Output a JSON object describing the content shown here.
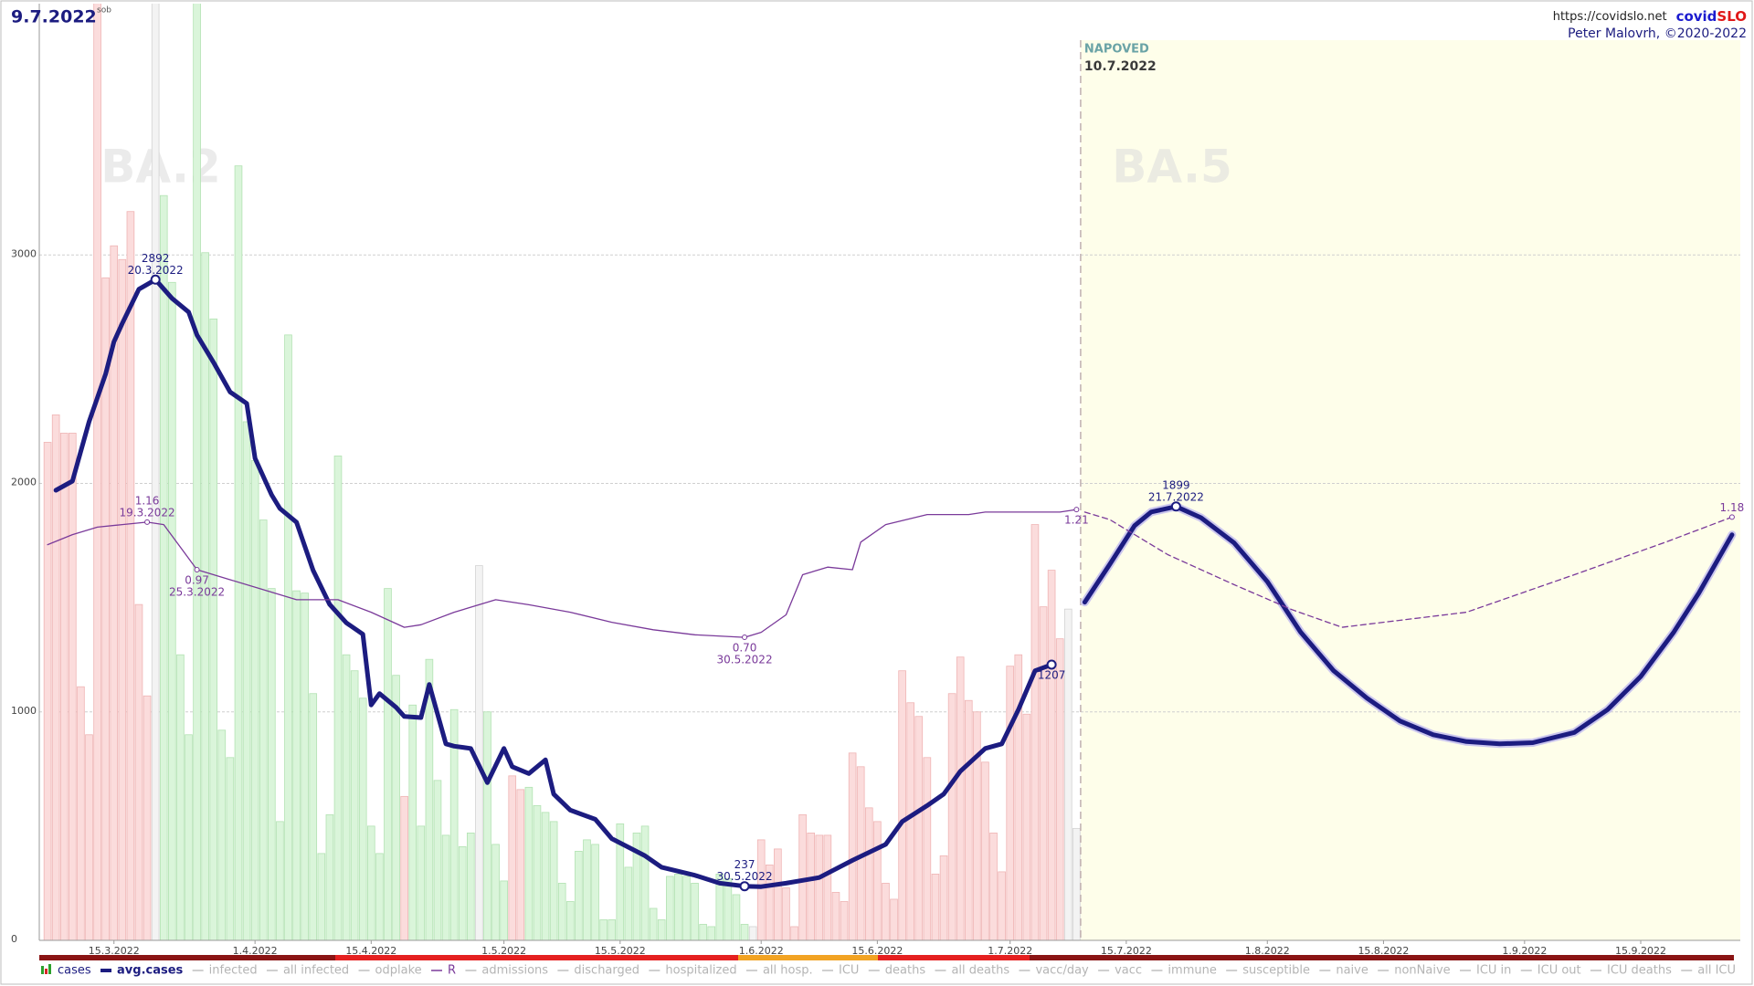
{
  "chart_data": {
    "type": "combo",
    "title": "9.7.2022",
    "subtitle": "sob",
    "source": "https://covidslo.net",
    "brand": [
      "covid",
      "SLO"
    ],
    "author": "Peter Malovrh, ©2020-2022",
    "forecast_label": "NAPOVED",
    "forecast_start": "10.7.2022",
    "variants": [
      "BA.2",
      "BA.5"
    ],
    "xlim": [
      "6.3.2022",
      "27.9.2022"
    ],
    "xticks": [
      "15.3.2022",
      "1.4.2022",
      "15.4.2022",
      "1.5.2022",
      "15.5.2022",
      "1.6.2022",
      "15.6.2022",
      "1.7.2022",
      "15.7.2022",
      "1.8.2022",
      "15.8.2022",
      "1.9.2022",
      "15.9.2022"
    ],
    "ylim": [
      0,
      4100
    ],
    "yticks": [
      0,
      1000,
      2000,
      3000
    ],
    "y2lim": [
      -0.51,
      3.23
    ],
    "grid": true,
    "series": [
      {
        "name": "cases",
        "type": "bar",
        "colors": {
          "up": "#fbdcdc",
          "down": "#daf5da",
          "flat": "#f3f3f3"
        },
        "edge_colors": {
          "up": "#efb4b4",
          "down": "#b2e2b2",
          "flat": "#d2d2d2"
        },
        "x": [
          "7.3.2022",
          "8.3.2022",
          "9.3.2022",
          "10.3.2022",
          "11.3.2022",
          "12.3.2022",
          "13.3.2022",
          "14.3.2022",
          "15.3.2022",
          "16.3.2022",
          "17.3.2022",
          "18.3.2022",
          "19.3.2022",
          "20.3.2022",
          "21.3.2022",
          "22.3.2022",
          "23.3.2022",
          "24.3.2022",
          "25.3.2022",
          "26.3.2022",
          "27.3.2022",
          "28.3.2022",
          "29.3.2022",
          "30.3.2022",
          "31.3.2022",
          "1.4.2022",
          "2.4.2022",
          "3.4.2022",
          "4.4.2022",
          "5.4.2022",
          "6.4.2022",
          "7.4.2022",
          "8.4.2022",
          "9.4.2022",
          "10.4.2022",
          "11.4.2022",
          "12.4.2022",
          "13.4.2022",
          "14.4.2022",
          "15.4.2022",
          "16.4.2022",
          "17.4.2022",
          "18.4.2022",
          "19.4.2022",
          "20.4.2022",
          "21.4.2022",
          "22.4.2022",
          "23.4.2022",
          "24.4.2022",
          "25.4.2022",
          "26.4.2022",
          "27.4.2022",
          "28.4.2022",
          "29.4.2022",
          "30.4.2022",
          "1.5.2022",
          "2.5.2022",
          "3.5.2022",
          "4.5.2022",
          "5.5.2022",
          "6.5.2022",
          "7.5.2022",
          "8.5.2022",
          "9.5.2022",
          "10.5.2022",
          "11.5.2022",
          "12.5.2022",
          "13.5.2022",
          "14.5.2022",
          "15.5.2022",
          "16.5.2022",
          "17.5.2022",
          "18.5.2022",
          "19.5.2022",
          "20.5.2022",
          "21.5.2022",
          "22.5.2022",
          "23.5.2022",
          "24.5.2022",
          "25.5.2022",
          "26.5.2022",
          "27.5.2022",
          "28.5.2022",
          "29.5.2022",
          "30.5.2022",
          "31.5.2022",
          "1.6.2022",
          "2.6.2022",
          "3.6.2022",
          "4.6.2022",
          "5.6.2022",
          "6.6.2022",
          "7.6.2022",
          "8.6.2022",
          "9.6.2022",
          "10.6.2022",
          "11.6.2022",
          "12.6.2022",
          "13.6.2022",
          "14.6.2022",
          "15.6.2022",
          "16.6.2022",
          "17.6.2022",
          "18.6.2022",
          "19.6.2022",
          "20.6.2022",
          "21.6.2022",
          "22.6.2022",
          "23.6.2022",
          "24.6.2022",
          "25.6.2022",
          "26.6.2022",
          "27.6.2022",
          "28.6.2022",
          "29.6.2022",
          "30.6.2022",
          "1.7.2022",
          "2.7.2022",
          "3.7.2022",
          "4.7.2022",
          "5.7.2022",
          "6.7.2022",
          "7.7.2022",
          "8.7.2022",
          "9.7.2022"
        ],
        "values": [
          2180,
          2300,
          2220,
          2220,
          1110,
          900,
          4300,
          2900,
          3040,
          2980,
          3190,
          1470,
          1070,
          4300,
          3260,
          2880,
          1250,
          900,
          4300,
          3010,
          2720,
          920,
          800,
          3390,
          2270,
          2100,
          1840,
          1540,
          520,
          2650,
          1530,
          1520,
          1080,
          380,
          550,
          2120,
          1250,
          1180,
          1060,
          500,
          380,
          1540,
          1160,
          630,
          1030,
          500,
          1230,
          700,
          460,
          1010,
          410,
          470,
          1640,
          1000,
          420,
          260,
          720,
          660,
          670,
          590,
          560,
          520,
          250,
          170,
          390,
          440,
          420,
          90,
          90,
          510,
          320,
          470,
          500,
          140,
          90,
          280,
          290,
          280,
          250,
          70,
          60,
          290,
          270,
          200,
          70,
          60,
          440,
          330,
          400,
          230,
          60,
          550,
          470,
          460,
          460,
          210,
          170,
          820,
          760,
          580,
          520,
          250,
          180,
          1180,
          1040,
          980,
          800,
          290,
          370,
          1080,
          1240,
          1050,
          1000,
          780,
          470,
          300,
          1200,
          1250,
          990,
          1820,
          1460,
          1620,
          1320,
          1450,
          490
        ]
      },
      {
        "name": "avg.cases",
        "type": "line",
        "color": "#1c1c80",
        "width": 5,
        "x": [
          "8.3.2022",
          "10.3.2022",
          "12.3.2022",
          "14.3.2022",
          "15.3.2022",
          "16.3.2022",
          "18.3.2022",
          "20.3.2022",
          "22.3.2022",
          "24.3.2022",
          "25.3.2022",
          "27.3.2022",
          "29.3.2022",
          "31.3.2022",
          "1.4.2022",
          "3.4.2022",
          "4.4.2022",
          "6.4.2022",
          "8.4.2022",
          "10.4.2022",
          "12.4.2022",
          "14.4.2022",
          "15.4.2022",
          "16.4.2022",
          "18.4.2022",
          "19.4.2022",
          "21.4.2022",
          "22.4.2022",
          "24.4.2022",
          "25.4.2022",
          "27.4.2022",
          "29.4.2022",
          "1.5.2022",
          "2.5.2022",
          "4.5.2022",
          "6.5.2022",
          "7.5.2022",
          "9.5.2022",
          "12.5.2022",
          "14.5.2022",
          "18.5.2022",
          "20.5.2022",
          "24.5.2022",
          "27.5.2022",
          "30.5.2022",
          "1.6.2022",
          "4.6.2022",
          "8.6.2022",
          "12.6.2022",
          "16.6.2022",
          "18.6.2022",
          "21.6.2022",
          "23.6.2022",
          "25.6.2022",
          "28.6.2022",
          "30.6.2022",
          "2.7.2022",
          "4.7.2022",
          "6.7.2022"
        ],
        "values": [
          1970,
          2010,
          2270,
          2480,
          2620,
          2700,
          2850,
          2892,
          2810,
          2750,
          2650,
          2530,
          2400,
          2350,
          2110,
          1950,
          1890,
          1830,
          1620,
          1470,
          1390,
          1340,
          1030,
          1080,
          1020,
          980,
          975,
          1120,
          860,
          850,
          840,
          690,
          840,
          760,
          730,
          790,
          640,
          570,
          530,
          445,
          370,
          320,
          285,
          250,
          237,
          235,
          250,
          275,
          350,
          420,
          520,
          590,
          640,
          740,
          840,
          860,
          1010,
          1180,
          1207
        ]
      },
      {
        "type": "line",
        "color": "#1c1c80",
        "halo": "#cbc6ee",
        "width": 5,
        "x": [
          "10.7.2022",
          "13.7.2022",
          "16.7.2022",
          "18.7.2022",
          "21.7.2022",
          "24.7.2022",
          "28.7.2022",
          "1.8.2022",
          "5.8.2022",
          "9.8.2022",
          "13.8.2022",
          "17.8.2022",
          "21.8.2022",
          "25.8.2022",
          "29.8.2022",
          "2.9.2022",
          "7.9.2022",
          "11.9.2022",
          "15.9.2022",
          "19.9.2022",
          "22.9.2022",
          "26.9.2022"
        ],
        "values": [
          1480,
          1645,
          1815,
          1875,
          1899,
          1850,
          1740,
          1570,
          1350,
          1180,
          1060,
          960,
          900,
          870,
          860,
          865,
          910,
          1010,
          1155,
          1350,
          1520,
          1775
        ]
      },
      {
        "name": "R",
        "type": "line",
        "color": "#7a3a9a",
        "width": 1.3,
        "axis": "y2",
        "x": [
          "7.3.2022",
          "10.3.2022",
          "13.3.2022",
          "16.3.2022",
          "19.3.2022",
          "21.3.2022",
          "23.3.2022",
          "25.3.2022",
          "29.3.2022",
          "2.4.2022",
          "6.4.2022",
          "11.4.2022",
          "15.4.2022",
          "19.4.2022",
          "21.4.2022",
          "25.4.2022",
          "30.4.2022",
          "4.5.2022",
          "9.5.2022",
          "14.5.2022",
          "19.5.2022",
          "24.5.2022",
          "30.5.2022",
          "1.6.2022",
          "4.6.2022",
          "6.6.2022",
          "9.6.2022",
          "12.6.2022",
          "13.6.2022",
          "16.6.2022",
          "21.6.2022",
          "26.6.2022",
          "28.6.2022",
          "3.7.2022",
          "7.7.2022",
          "9.7.2022"
        ],
        "values": [
          1.07,
          1.11,
          1.14,
          1.15,
          1.16,
          1.15,
          1.06,
          0.97,
          0.93,
          0.89,
          0.85,
          0.85,
          0.8,
          0.74,
          0.75,
          0.8,
          0.85,
          0.83,
          0.8,
          0.76,
          0.73,
          0.71,
          0.7,
          0.72,
          0.79,
          0.95,
          0.98,
          0.97,
          1.08,
          1.15,
          1.19,
          1.19,
          1.2,
          1.2,
          1.2,
          1.21
        ]
      },
      {
        "type": "line",
        "color": "#7a3a9a",
        "width": 1.3,
        "axis": "y2",
        "dashed": true,
        "x": [
          "10.7.2022",
          "13.7.2022",
          "20.7.2022",
          "28.7.2022",
          "4.8.2022",
          "10.8.2022",
          "25.8.2022",
          "7.9.2022",
          "18.9.2022",
          "26.9.2022"
        ],
        "values": [
          1.2,
          1.17,
          1.03,
          0.91,
          0.81,
          0.74,
          0.8,
          0.95,
          1.08,
          1.18
        ]
      }
    ],
    "annotations": [
      {
        "text": "2892",
        "date": "20.3.2022"
      },
      {
        "text": "237",
        "date": "30.5.2022"
      },
      {
        "text": "1207"
      },
      {
        "text": "1899",
        "date": "21.7.2022"
      },
      {
        "text": "1.16",
        "date": "19.3.2022"
      },
      {
        "text": "0.97",
        "date": "25.3.2022"
      },
      {
        "text": "0.70",
        "date": "30.5.2022"
      },
      {
        "text": "1.21"
      },
      {
        "text": "1.18"
      }
    ],
    "legend": [
      "cases",
      "avg.cases",
      "infected",
      "all infected",
      "odplake",
      "R",
      "admissions",
      "discharged",
      "hospitalized",
      "all hosp.",
      "ICU",
      "deaths",
      "all deaths",
      "vacc/day",
      "vacc",
      "immune",
      "susceptible",
      "naive",
      "nonNaive",
      "ICU in",
      "ICU out",
      "ICU deaths",
      "all ICU"
    ]
  }
}
